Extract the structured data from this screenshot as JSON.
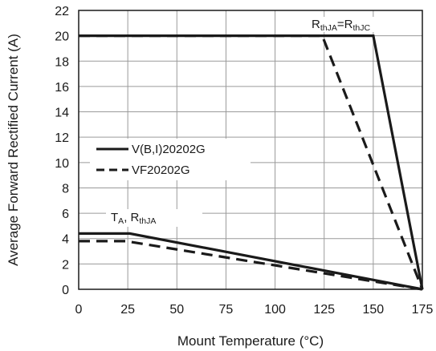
{
  "chart_data": {
    "type": "line",
    "title": "",
    "xlabel": "Mount Temperature (°C)",
    "ylabel": "Average Forward Rectified Current (A)",
    "xlim": [
      0,
      175
    ],
    "ylim": [
      0,
      22
    ],
    "xticks": [
      0,
      25,
      50,
      75,
      100,
      125,
      150,
      175
    ],
    "yticks": [
      0,
      2,
      4,
      6,
      8,
      10,
      12,
      14,
      16,
      18,
      20,
      22
    ],
    "grid": true,
    "legend_position": "center-left",
    "series": [
      {
        "name": "V(B,I)20202G",
        "style": "solid",
        "x": [
          0,
          150,
          175
        ],
        "y": [
          20,
          20,
          0
        ]
      },
      {
        "name": "VF20202G",
        "style": "dashed",
        "x": [
          0,
          124,
          175
        ],
        "y": [
          20,
          20,
          0
        ]
      },
      {
        "name": "",
        "style": "solid",
        "x": [
          0,
          26,
          175
        ],
        "y": [
          4.4,
          4.4,
          0
        ]
      },
      {
        "name": "",
        "style": "dashed",
        "x": [
          0,
          24,
          175
        ],
        "y": [
          3.8,
          3.8,
          0
        ]
      }
    ],
    "annotations": {
      "rthja_eq_rthjc": {
        "main1": "R",
        "sub1": "thJA",
        "main2": "=R",
        "sub2": "thJC"
      },
      "ta_rthja": {
        "main1": "T",
        "sub1": "A",
        "main2": ", R",
        "sub2": "thJA"
      }
    }
  }
}
